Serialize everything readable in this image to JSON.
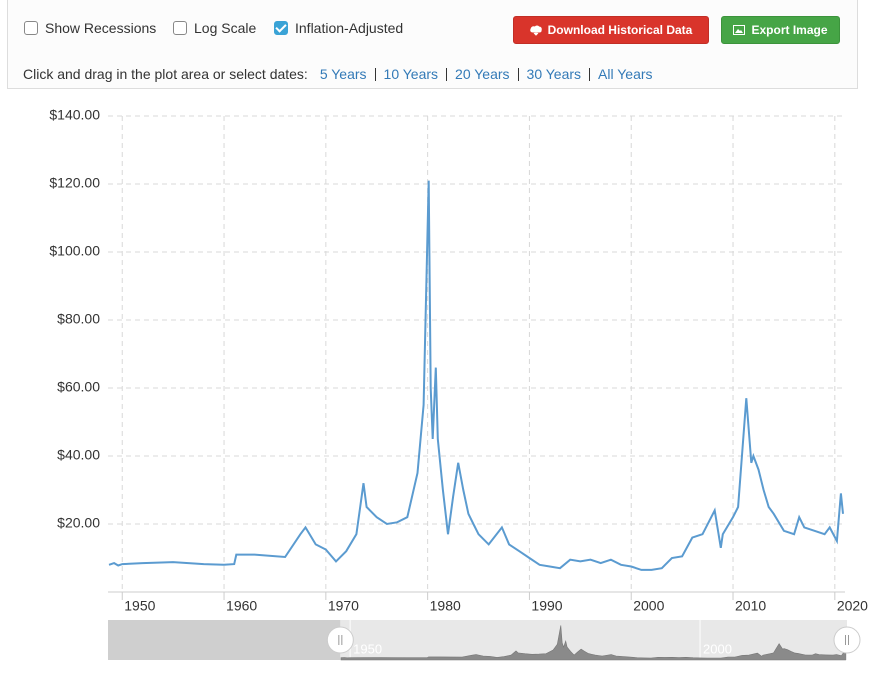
{
  "controls": {
    "checkboxes": [
      {
        "label": "Show Recessions",
        "checked": false
      },
      {
        "label": "Log Scale",
        "checked": false
      },
      {
        "label": "Inflation-Adjusted",
        "checked": true
      }
    ],
    "buttons": [
      "Download Historical Data",
      "Export Image"
    ],
    "prompt": "Click and drag in the plot area or select dates:",
    "ranges": [
      "5 Years",
      "10 Years",
      "20 Years",
      "30 Years",
      "All Years"
    ]
  },
  "chart_data": {
    "type": "line",
    "color": "#5b9bd0",
    "log_scale": false,
    "grid": true,
    "x": [
      1948.7,
      1949.2,
      1949.6,
      1950,
      1952,
      1955,
      1958,
      1960,
      1961,
      1961.2,
      1963,
      1966,
      1967.5,
      1968,
      1969,
      1970,
      1971,
      1972,
      1973,
      1973.7,
      1974,
      1975,
      1976,
      1977,
      1978,
      1979,
      1979.6,
      1980.1,
      1980.3,
      1980.5,
      1980.8,
      1981,
      1981.5,
      1982,
      1982.5,
      1983,
      1983.5,
      1984,
      1984.5,
      1985,
      1986,
      1987.3,
      1988,
      1989,
      1990,
      1991,
      1992,
      1993,
      1994,
      1995,
      1996,
      1997,
      1998,
      1999,
      2000,
      2001,
      2002,
      2003,
      2004,
      2005,
      2006,
      2007,
      2008.2,
      2008.8,
      2009,
      2010,
      2010.5,
      2011.3,
      2011.8,
      2012,
      2012.5,
      2013,
      2013.5,
      2014,
      2015,
      2016,
      2016.5,
      2017,
      2018,
      2019,
      2019.5,
      2020.2,
      2020.6,
      2020.8
    ],
    "values": [
      8,
      8.5,
      7.8,
      8.2,
      8.5,
      8.8,
      8.2,
      8,
      8.2,
      11,
      11,
      10.3,
      17,
      19,
      14,
      12.5,
      9,
      12,
      17,
      32,
      25,
      22,
      20,
      20.5,
      22,
      35,
      55,
      121,
      60,
      45,
      66,
      45,
      30,
      17,
      28,
      38,
      30,
      23,
      20,
      17,
      14,
      19,
      14,
      12,
      10,
      8,
      7.5,
      7,
      9.5,
      9,
      9.5,
      8.5,
      9.5,
      8,
      7.5,
      6.5,
      6.5,
      7,
      10,
      10.5,
      16,
      17,
      24,
      13,
      17,
      22,
      25,
      57,
      38,
      40,
      36,
      30,
      25,
      23,
      18,
      17,
      22,
      19,
      18,
      17,
      19,
      15,
      29,
      23
    ],
    "xlim": [
      1948.6,
      2021
    ],
    "xticks": [
      1950,
      1960,
      1970,
      1980,
      1990,
      2000,
      2010,
      2020
    ],
    "ylim": [
      0,
      140
    ],
    "yticks": [
      {
        "value": 20,
        "label": "$20.00"
      },
      {
        "value": 40,
        "label": "$40.00"
      },
      {
        "value": 60,
        "label": "$60.00"
      },
      {
        "value": 80,
        "label": "$80.00"
      },
      {
        "value": 100,
        "label": "$100.00"
      },
      {
        "value": 120,
        "label": "$120.00"
      },
      {
        "value": 140,
        "label": "$140.00"
      }
    ],
    "navigator": {
      "xlim": [
        1915.4,
        2021
      ],
      "xticks": [
        1950,
        2000
      ]
    }
  }
}
